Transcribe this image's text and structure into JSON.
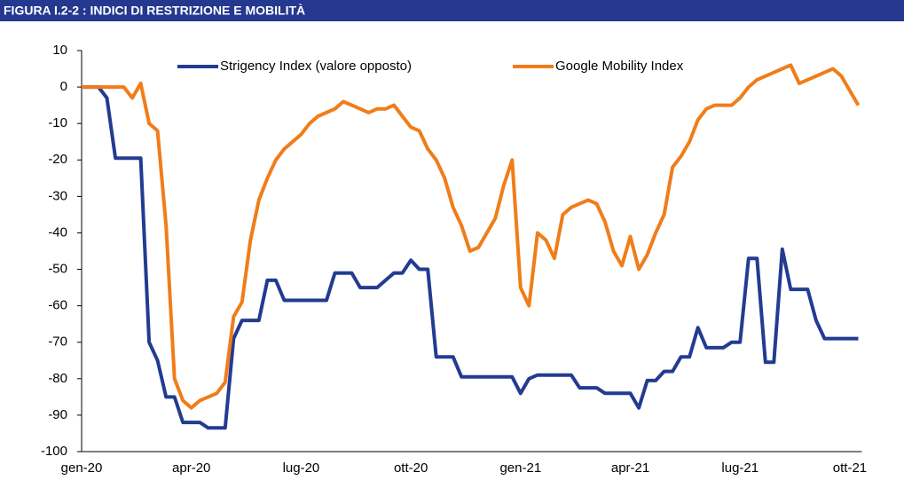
{
  "chart_data": {
    "type": "line",
    "title": "FIGURA I.2-2 : INDICI DI RESTRIZIONE E MOBILITÀ",
    "categories": [
      "gen-20",
      null,
      null,
      null,
      null,
      null,
      null,
      null,
      null,
      null,
      null,
      null,
      null,
      "apr-20",
      null,
      null,
      null,
      null,
      null,
      null,
      null,
      null,
      null,
      null,
      null,
      null,
      "lug-20",
      null,
      null,
      null,
      null,
      null,
      null,
      null,
      null,
      null,
      null,
      null,
      null,
      "ott-20",
      null,
      null,
      null,
      null,
      null,
      null,
      null,
      null,
      null,
      null,
      null,
      null,
      "gen-21",
      null,
      null,
      null,
      null,
      null,
      null,
      null,
      null,
      null,
      null,
      null,
      null,
      "apr-21",
      null,
      null,
      null,
      null,
      null,
      null,
      null,
      null,
      null,
      null,
      null,
      null,
      "lug-21",
      null,
      null,
      null,
      null,
      null,
      null,
      null,
      null,
      null,
      null,
      null,
      null,
      "ott-21",
      null
    ],
    "series": [
      {
        "name": "Strigency Index (valore opposto)",
        "color": "#233b91",
        "values": [
          0,
          0,
          0,
          -3,
          -19.5,
          -19.5,
          -19.5,
          -19.5,
          -70,
          -75,
          -85,
          -85,
          -92,
          -92,
          -92,
          -93.5,
          -93.5,
          -93.5,
          -69,
          -64,
          -64,
          -64,
          -53,
          -53,
          -58.5,
          -58.5,
          -58.5,
          -58.5,
          -58.5,
          -58.5,
          -51,
          -51,
          -51,
          -55,
          -55,
          -55,
          -53,
          -51,
          -51,
          -47.5,
          -50,
          -50,
          -74,
          -74,
          -74,
          -79.5,
          -79.5,
          -79.5,
          -79.5,
          -79.5,
          -79.5,
          -79.5,
          -84,
          -80,
          -79,
          -79,
          -79,
          -79,
          -79,
          -82.5,
          -82.5,
          -82.5,
          -84,
          -84,
          -84,
          -84,
          -88,
          -80.5,
          -80.5,
          -78,
          -78,
          -74,
          -74,
          -66,
          -71.5,
          -71.5,
          -71.5,
          -70,
          -70,
          -47,
          -47,
          -75.5,
          -75.5,
          -44.5,
          -55.5,
          -55.5,
          -55.5,
          -64,
          -69,
          -69,
          -69,
          -69,
          -69
        ]
      },
      {
        "name": "Google Mobility Index",
        "color": "#f07d1a",
        "values": [
          0,
          0,
          0,
          0,
          0,
          0,
          -3,
          1,
          -10,
          -12,
          -38,
          -80,
          -86,
          -88,
          -86,
          -85,
          -84,
          -81,
          -63,
          -59,
          -42,
          -31,
          -25,
          -20,
          -17,
          -15,
          -13,
          -10,
          -8,
          -7,
          -6,
          -4,
          -5,
          -6,
          -7,
          -6,
          -6,
          -5,
          -8,
          -11,
          -12,
          -17,
          -20,
          -25,
          -33,
          -38,
          -45,
          -44,
          -40,
          -36,
          -27,
          -20,
          -55,
          -60,
          -40,
          -42,
          -47,
          -35,
          -33,
          -32,
          -31,
          -32,
          -37,
          -45,
          -49,
          -41,
          -50,
          -46,
          -40,
          -35,
          -22,
          -19,
          -15,
          -9,
          -6,
          -5,
          -5,
          -5,
          -3,
          0,
          2,
          3,
          4,
          5,
          6,
          1,
          2,
          3,
          4,
          5,
          3,
          -1,
          -5
        ]
      }
    ],
    "ylim": [
      -100,
      10
    ],
    "yticks": [
      10,
      0,
      -10,
      -20,
      -30,
      -40,
      -50,
      -60,
      -70,
      -80,
      -90,
      -100
    ],
    "grid": false,
    "legend": "top"
  }
}
